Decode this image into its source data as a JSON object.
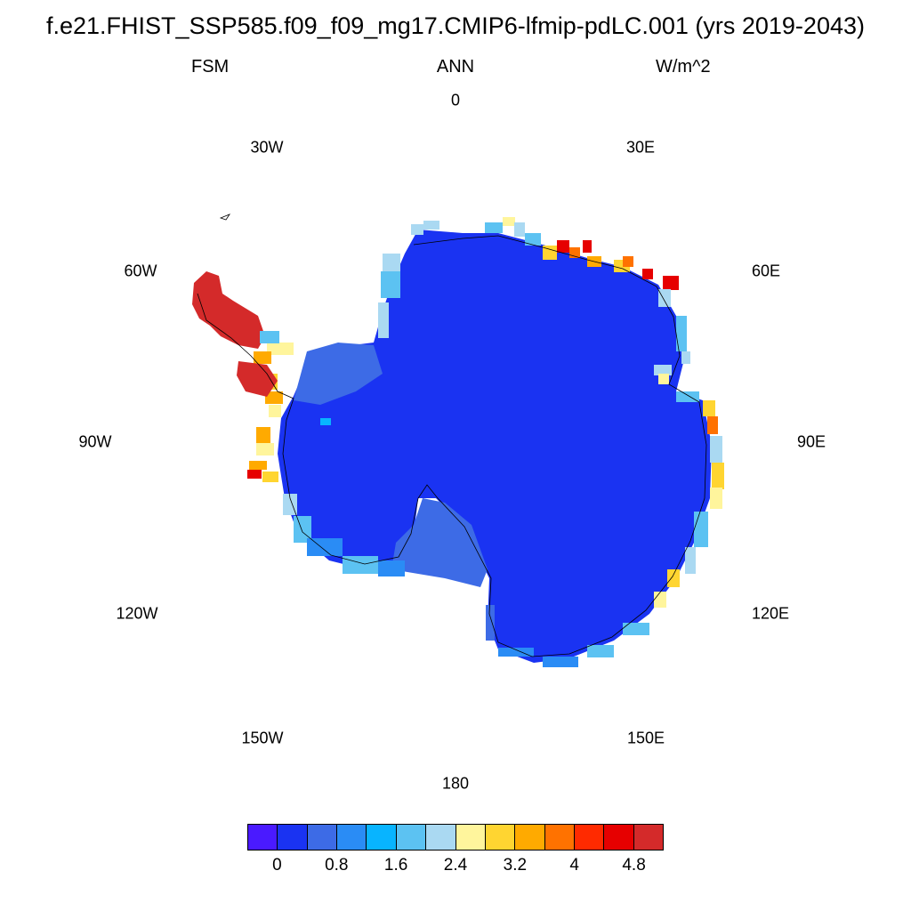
{
  "header": {
    "title": "f.e21.FHIST_SSP585.f09_f09_mg17.CMIP6-lfmip-pdLC.001 (yrs 2019-2043)",
    "variable": "FSM",
    "period": "ANN",
    "units": "W/m^2"
  },
  "longitude_labels": {
    "lon_0": "0",
    "lon_30e": "30E",
    "lon_60e": "60E",
    "lon_90e": "90E",
    "lon_120e": "120E",
    "lon_150e": "150E",
    "lon_180": "180",
    "lon_150w": "150W",
    "lon_120w": "120W",
    "lon_90w": "90W",
    "lon_60w": "60W",
    "lon_30w": "30W"
  },
  "colorbar": {
    "colors": [
      "#4a1aff",
      "#1a33f2",
      "#3d6be6",
      "#2a8cf5",
      "#08b4ff",
      "#5cc2f2",
      "#aad9f2",
      "#fff59c",
      "#ffd531",
      "#ffaa00",
      "#ff7200",
      "#ff2a00",
      "#e60000",
      "#d42a2a"
    ],
    "labels": [
      "0",
      "0.8",
      "1.6",
      "2.4",
      "3.2",
      "4",
      "4.8"
    ]
  },
  "map_data": {
    "region": "Antarctica",
    "projection": "south polar stereographic",
    "interior_value_bin": "0 - 0.4",
    "interior_color": "#1a33f2",
    "coastal_margin_colors": [
      "#3d6be6",
      "#5cc2f2",
      "#aad9f2",
      "#fff59c",
      "#ffd531",
      "#ffaa00",
      "#ff7200",
      "#e60000"
    ],
    "peninsula_color": "#d42a2a"
  }
}
